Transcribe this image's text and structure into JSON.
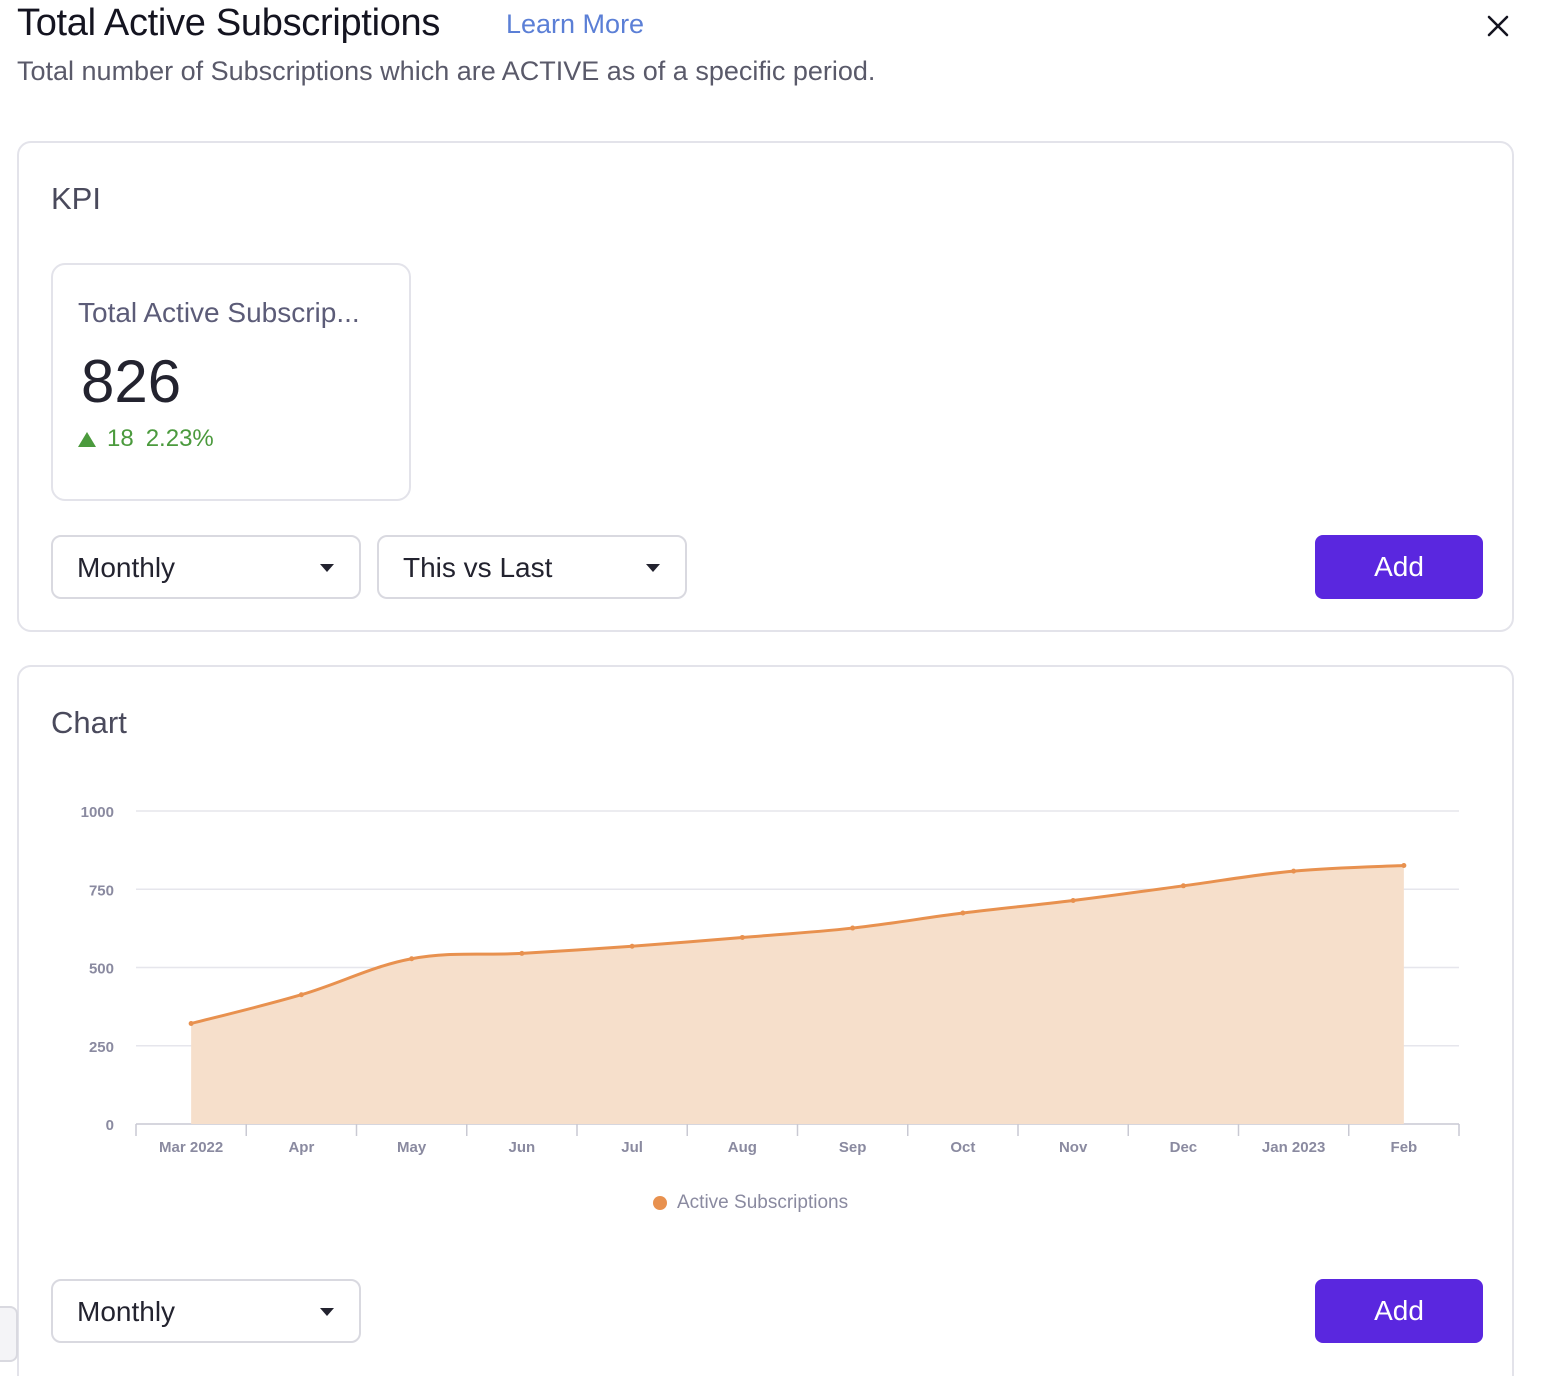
{
  "header": {
    "title": "Total Active Subscriptions",
    "learn_more": "Learn More",
    "description": "Total number of Subscriptions which are ACTIVE as of a specific period."
  },
  "kpi_section": {
    "title": "KPI",
    "tile": {
      "title": "Total Active Subscrip...",
      "value": "826",
      "change_value": "18",
      "change_percent": "2.23%",
      "direction": "up"
    },
    "period_select": "Monthly",
    "compare_select": "This vs Last",
    "add_label": "Add"
  },
  "chart_section": {
    "title": "Chart",
    "period_select": "Monthly",
    "add_label": "Add"
  },
  "colors": {
    "accent": "#5a27df",
    "series_line": "#e8914f",
    "series_fill": "#f6dfcb",
    "positive": "#4b9a3d",
    "link": "#5b7fd6"
  },
  "icons": {
    "close": "close-icon",
    "caret": "caret-down-icon",
    "trend": "triangle-up-icon"
  },
  "chart_data": {
    "type": "area",
    "title": "",
    "xlabel": "",
    "ylabel": "",
    "categories": [
      "Mar 2022",
      "Apr",
      "May",
      "Jun",
      "Jul",
      "Aug",
      "Sep",
      "Oct",
      "Nov",
      "Dec",
      "Jan 2023",
      "Feb"
    ],
    "series": [
      {
        "name": "Active Subscriptions",
        "values": [
          321,
          413,
          528,
          545,
          568,
          596,
          626,
          674,
          714,
          761,
          808,
          826
        ]
      }
    ],
    "ylim": [
      0,
      1000
    ],
    "yticks": [
      0,
      250,
      500,
      750,
      1000
    ],
    "grid": true,
    "legend": "bottom-center"
  }
}
